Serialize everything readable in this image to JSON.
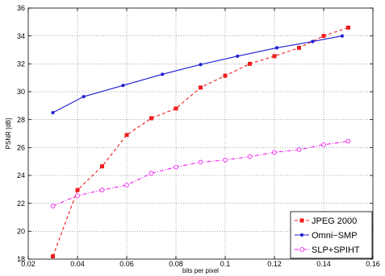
{
  "chart_data": {
    "type": "line",
    "xlabel": "bits per pixel",
    "ylabel": "PSNR [dB]",
    "xlim": [
      0.02,
      0.16
    ],
    "ylim": [
      18,
      36
    ],
    "xticks": [
      0.02,
      0.04,
      0.06,
      0.08,
      0.1,
      0.12,
      0.14,
      0.16
    ],
    "xtick_labels": [
      "0.02",
      "0.04",
      "0.06",
      "0.08",
      "0.1",
      "0.12",
      "0.14",
      "0.16"
    ],
    "yticks": [
      18,
      20,
      22,
      24,
      26,
      28,
      30,
      32,
      34,
      36
    ],
    "ytick_labels": [
      "18",
      "20",
      "22",
      "24",
      "26",
      "28",
      "30",
      "32",
      "34",
      "36"
    ],
    "grid": true,
    "legend_position": "bottom-right",
    "series": [
      {
        "name": "JPEG 2000",
        "color": "#ee1c1c",
        "line_style": "dashed",
        "marker": "square",
        "x": [
          0.03,
          0.04,
          0.05,
          0.06,
          0.07,
          0.08,
          0.09,
          0.1,
          0.11,
          0.12,
          0.13,
          0.14,
          0.15
        ],
        "y": [
          18.2,
          22.95,
          24.65,
          26.9,
          28.1,
          28.8,
          30.3,
          31.15,
          32.0,
          32.55,
          33.15,
          34.0,
          34.6
        ]
      },
      {
        "name": "Omni−SMP",
        "color": "#1c1cd4",
        "line_style": "solid",
        "marker": "dot",
        "x": [
          0.03,
          0.0425,
          0.0585,
          0.0745,
          0.09,
          0.105,
          0.121,
          0.1355,
          0.1475
        ],
        "y": [
          28.5,
          29.65,
          30.45,
          31.25,
          31.95,
          32.55,
          33.15,
          33.6,
          34.0
        ]
      },
      {
        "name": "SLP+SPIHT",
        "color": "#ee1cee",
        "line_style": "dashdot",
        "marker": "circle",
        "x": [
          0.03,
          0.04,
          0.05,
          0.06,
          0.07,
          0.08,
          0.09,
          0.1,
          0.11,
          0.12,
          0.13,
          0.14,
          0.15
        ],
        "y": [
          21.8,
          22.55,
          22.95,
          23.3,
          24.15,
          24.6,
          24.95,
          25.1,
          25.35,
          25.65,
          25.85,
          26.2,
          26.45
        ]
      }
    ]
  }
}
